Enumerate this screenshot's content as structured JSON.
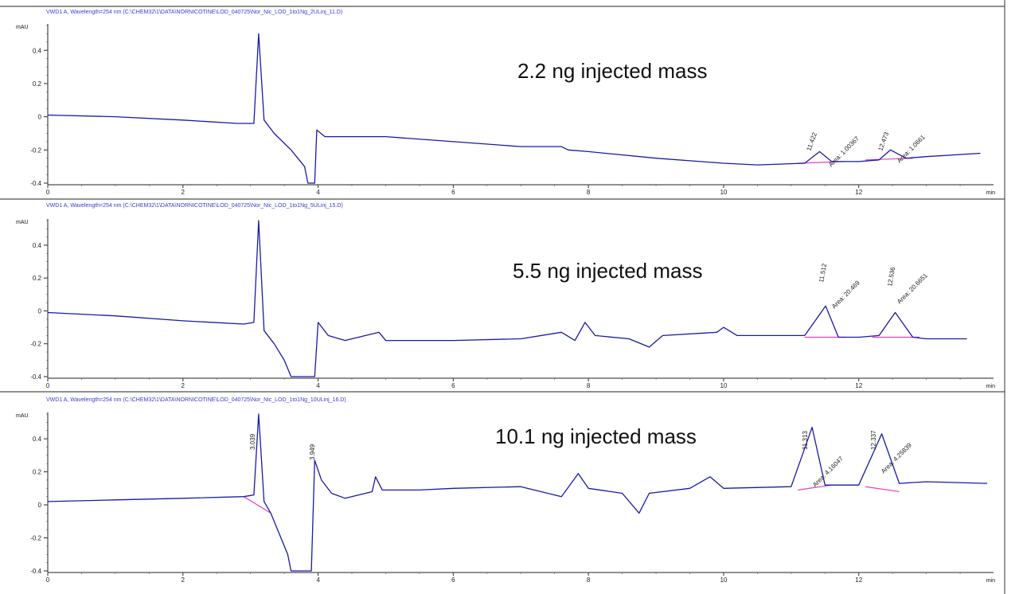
{
  "chart_data": [
    {
      "type": "line",
      "title": "VWD1 A, Wavelength=254 nm (C:\\CHEM32\\1\\DATA\\NORNICOTINE\\LOD_040725\\Nor_Nic_LOD_1to1Ng_2ULinj_11.D)",
      "ylabel": "mAU",
      "xlabel": "min",
      "xlim": [
        0,
        13.9
      ],
      "ylim": [
        -0.4,
        0.55
      ],
      "x_ticks": [
        "0",
        "2",
        "4",
        "6",
        "8",
        "10",
        "12"
      ],
      "y_ticks": [
        "-0.4",
        "-0.2",
        "0",
        "0.2",
        "0.4"
      ],
      "annotation": "2.2 ng injected mass",
      "peak_labels": [
        "11.422",
        "Area: 1.00367",
        "12.473",
        "Area: 1.0661"
      ],
      "series": [
        {
          "values": [
            [
              0,
              0.01
            ],
            [
              1,
              0
            ],
            [
              2,
              -0.02
            ],
            [
              2.8,
              -0.04
            ],
            [
              3.05,
              -0.04
            ],
            [
              3.12,
              0.5
            ],
            [
              3.2,
              -0.02
            ],
            [
              3.35,
              -0.1
            ],
            [
              3.6,
              -0.2
            ],
            [
              3.8,
              -0.3
            ],
            [
              3.85,
              -0.4
            ],
            [
              3.95,
              -0.4
            ],
            [
              3.98,
              -0.08
            ],
            [
              4.1,
              -0.12
            ],
            [
              4.5,
              -0.12
            ],
            [
              5,
              -0.12
            ],
            [
              6,
              -0.15
            ],
            [
              7,
              -0.18
            ],
            [
              7.6,
              -0.18
            ],
            [
              7.7,
              -0.2
            ],
            [
              8,
              -0.21
            ],
            [
              9,
              -0.25
            ],
            [
              10,
              -0.28
            ],
            [
              10.5,
              -0.29
            ],
            [
              11.2,
              -0.28
            ],
            [
              11.42,
              -0.21
            ],
            [
              11.6,
              -0.27
            ],
            [
              12,
              -0.27
            ],
            [
              12.3,
              -0.26
            ],
            [
              12.47,
              -0.2
            ],
            [
              12.7,
              -0.25
            ],
            [
              13,
              -0.24
            ],
            [
              13.8,
              -0.22
            ]
          ]
        }
      ],
      "baselines": [
        [
          [
            11.1,
            -0.28
          ],
          [
            11.8,
            -0.27
          ]
        ],
        [
          [
            12.1,
            -0.26
          ],
          [
            12.8,
            -0.25
          ]
        ]
      ]
    },
    {
      "type": "line",
      "title": "VWD1 A, Wavelength=254 nm (C:\\CHEM32\\1\\DATA\\NORNICOTINE\\LOD_040725\\Nor_Nic_LOD_1to1Ng_5ULinj_15.D)",
      "ylabel": "mAU",
      "xlabel": "min",
      "xlim": [
        0,
        13.9
      ],
      "ylim": [
        -0.4,
        0.55
      ],
      "x_ticks": [
        "0",
        "2",
        "4",
        "6",
        "8",
        "10",
        "12"
      ],
      "y_ticks": [
        "-0.4",
        "-0.2",
        "0",
        "0.2",
        "0.4"
      ],
      "annotation": "5.5 ng injected mass",
      "peak_labels": [
        "11.512",
        "Area: 20.469",
        "12.536",
        "Area: 20.6651"
      ],
      "series": [
        {
          "values": [
            [
              0,
              -0.01
            ],
            [
              1,
              -0.03
            ],
            [
              2,
              -0.06
            ],
            [
              2.9,
              -0.08
            ],
            [
              3.05,
              -0.07
            ],
            [
              3.12,
              0.55
            ],
            [
              3.2,
              -0.12
            ],
            [
              3.35,
              -0.2
            ],
            [
              3.5,
              -0.3
            ],
            [
              3.6,
              -0.4
            ],
            [
              3.95,
              -0.4
            ],
            [
              4,
              -0.07
            ],
            [
              4.15,
              -0.15
            ],
            [
              4.4,
              -0.18
            ],
            [
              4.9,
              -0.13
            ],
            [
              5,
              -0.18
            ],
            [
              5.5,
              -0.18
            ],
            [
              6,
              -0.18
            ],
            [
              7,
              -0.17
            ],
            [
              7.6,
              -0.13
            ],
            [
              7.8,
              -0.18
            ],
            [
              7.95,
              -0.07
            ],
            [
              8.1,
              -0.15
            ],
            [
              8.6,
              -0.17
            ],
            [
              8.9,
              -0.22
            ],
            [
              9.1,
              -0.15
            ],
            [
              9.9,
              -0.13
            ],
            [
              10,
              -0.1
            ],
            [
              10.2,
              -0.15
            ],
            [
              11.2,
              -0.15
            ],
            [
              11.51,
              0.03
            ],
            [
              11.7,
              -0.16
            ],
            [
              12,
              -0.16
            ],
            [
              12.3,
              -0.15
            ],
            [
              12.54,
              -0.01
            ],
            [
              12.8,
              -0.16
            ],
            [
              13,
              -0.17
            ],
            [
              13.6,
              -0.17
            ]
          ]
        }
      ],
      "baselines": [
        [
          [
            11.2,
            -0.16
          ],
          [
            11.8,
            -0.16
          ]
        ],
        [
          [
            12.2,
            -0.16
          ],
          [
            12.9,
            -0.16
          ]
        ]
      ]
    },
    {
      "type": "line",
      "title": "VWD1 A, Wavelength=254 nm (C:\\CHEM32\\1\\DATA\\NORNICOTINE\\LOD_040725\\Nor_Nic_LOD_1to1Ng_10ULinj_16.D)",
      "ylabel": "mAU",
      "xlabel": "min",
      "xlim": [
        0,
        13.9
      ],
      "ylim": [
        -0.4,
        0.55
      ],
      "x_ticks": [
        "0",
        "2",
        "4",
        "6",
        "8",
        "10",
        "12"
      ],
      "y_ticks": [
        "-0.4",
        "-0.2",
        "0",
        "0.2",
        "0.4"
      ],
      "annotation": "10.1 ng injected mass",
      "peak_labels": [
        "3.039",
        "3.949",
        "11.313",
        "Area: 4.16047",
        "12.337",
        "Area: 4.25839"
      ],
      "series": [
        {
          "values": [
            [
              0,
              0.02
            ],
            [
              1,
              0.03
            ],
            [
              2,
              0.04
            ],
            [
              2.9,
              0.05
            ],
            [
              3.05,
              0.06
            ],
            [
              3.12,
              0.55
            ],
            [
              3.2,
              0.02
            ],
            [
              3.3,
              -0.05
            ],
            [
              3.45,
              -0.2
            ],
            [
              3.55,
              -0.3
            ],
            [
              3.6,
              -0.4
            ],
            [
              3.9,
              -0.4
            ],
            [
              3.95,
              0.27
            ],
            [
              4.05,
              0.15
            ],
            [
              4.2,
              0.07
            ],
            [
              4.4,
              0.04
            ],
            [
              4.8,
              0.08
            ],
            [
              4.85,
              0.17
            ],
            [
              4.95,
              0.09
            ],
            [
              5.5,
              0.09
            ],
            [
              6,
              0.1
            ],
            [
              7,
              0.11
            ],
            [
              7.6,
              0.05
            ],
            [
              7.85,
              0.19
            ],
            [
              8,
              0.1
            ],
            [
              8.5,
              0.07
            ],
            [
              8.75,
              -0.05
            ],
            [
              8.9,
              0.07
            ],
            [
              9.5,
              0.1
            ],
            [
              9.8,
              0.17
            ],
            [
              10,
              0.1
            ],
            [
              11,
              0.11
            ],
            [
              11.31,
              0.47
            ],
            [
              11.5,
              0.12
            ],
            [
              12,
              0.12
            ],
            [
              12.34,
              0.43
            ],
            [
              12.6,
              0.13
            ],
            [
              13,
              0.14
            ],
            [
              13.9,
              0.13
            ]
          ]
        }
      ],
      "baselines": [
        [
          [
            2.9,
            0.05
          ],
          [
            3.3,
            -0.05
          ]
        ],
        [
          [
            11.1,
            0.09
          ],
          [
            11.6,
            0.12
          ]
        ],
        [
          [
            12.1,
            0.11
          ],
          [
            12.6,
            0.08
          ]
        ]
      ]
    }
  ]
}
